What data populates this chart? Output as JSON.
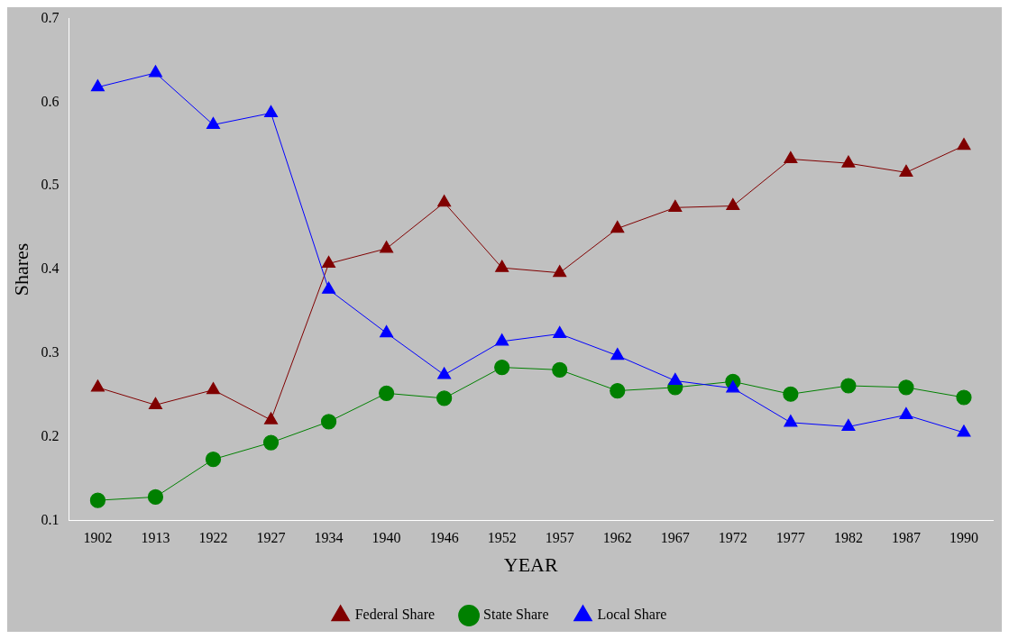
{
  "chart_data": {
    "type": "line",
    "xlabel": "YEAR",
    "ylabel": "Shares",
    "categories": [
      "1902",
      "1913",
      "1922",
      "1927",
      "1934",
      "1940",
      "1946",
      "1952",
      "1957",
      "1962",
      "1967",
      "1972",
      "1977",
      "1982",
      "1987",
      "1990"
    ],
    "series": [
      {
        "name": "Federal Share",
        "color": "#800000",
        "marker": "triangle",
        "values": [
          0.259,
          0.238,
          0.256,
          0.22,
          0.407,
          0.425,
          0.48,
          0.402,
          0.396,
          0.449,
          0.474,
          0.476,
          0.532,
          0.527,
          0.516,
          0.548
        ]
      },
      {
        "name": "State Share",
        "color": "#008000",
        "marker": "circle",
        "values": [
          0.124,
          0.128,
          0.173,
          0.193,
          0.218,
          0.252,
          0.246,
          0.283,
          0.28,
          0.255,
          0.259,
          0.266,
          0.251,
          0.261,
          0.259,
          0.247
        ]
      },
      {
        "name": "Local Share",
        "color": "#0000ff",
        "marker": "triangle",
        "values": [
          0.618,
          0.635,
          0.573,
          0.587,
          0.376,
          0.324,
          0.274,
          0.314,
          0.323,
          0.297,
          0.267,
          0.258,
          0.217,
          0.212,
          0.226,
          0.205
        ]
      }
    ],
    "ylim": [
      0.1,
      0.7
    ],
    "yticks": [
      0.1,
      0.2,
      0.3,
      0.4,
      0.5,
      0.6,
      0.7
    ],
    "grid": false,
    "legend": "bottom",
    "line_style": "solid"
  }
}
